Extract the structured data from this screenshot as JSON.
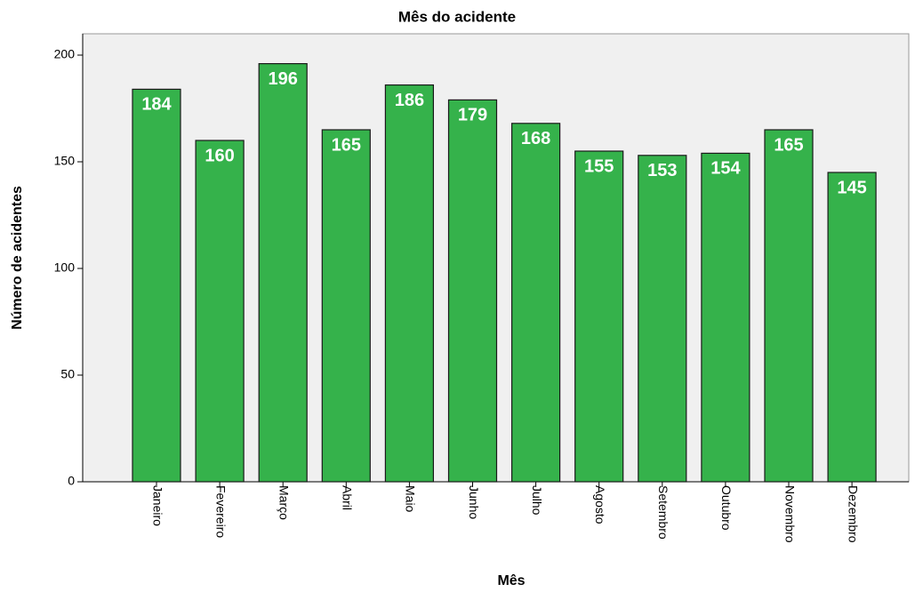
{
  "chart_data": {
    "type": "bar",
    "title": "Mês do acidente",
    "x_label": "Mês",
    "y_label": "Número de acidentes",
    "categories": [
      "Janeiro",
      "Fevereiro",
      "Março",
      "Abril",
      "Maio",
      "Junho",
      "Julho",
      "Agosto",
      "Setembro",
      "Outubro",
      "Novembro",
      "Dezembro"
    ],
    "values": [
      184,
      160,
      196,
      165,
      186,
      179,
      168,
      155,
      153,
      154,
      165,
      145
    ],
    "color": "#35b24b",
    "ylim": [
      0,
      210
    ],
    "yticks": [
      0,
      50,
      100,
      150,
      200
    ],
    "grid": false
  }
}
